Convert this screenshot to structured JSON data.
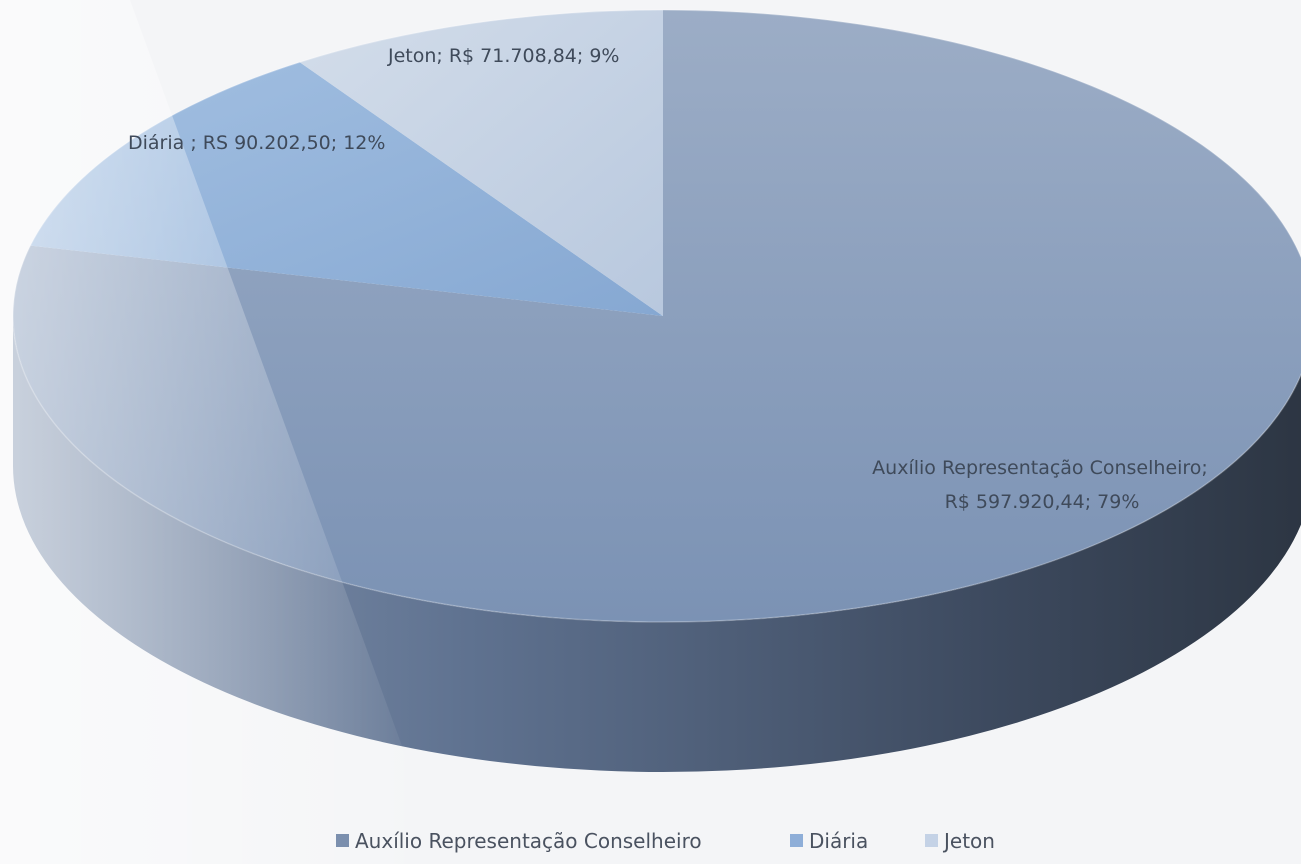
{
  "chart_data": {
    "type": "pie",
    "style": "3d",
    "title": "",
    "slices": [
      {
        "name": "Auxílio Representação Conselheiro",
        "value": 597920.44,
        "value_label": "R$ 597.920,44",
        "percent": 79,
        "color": "#8a9fbd"
      },
      {
        "name": "Diária",
        "value": 90202.5,
        "value_label": "RS 90.202,50",
        "percent": 12,
        "color": "#8faed6"
      },
      {
        "name": "Jeton",
        "value": 71708.84,
        "value_label": "R$ 71.708,84",
        "percent": 9,
        "color": "#c2cfe1"
      }
    ],
    "data_labels": [
      {
        "line1": "Auxílio Representação Conselheiro;",
        "line2": "R$ 597.920,44; 79%"
      },
      {
        "line1": "Diária ; RS 90.202,50; 12%",
        "line2": ""
      },
      {
        "line1": "Jeton; R$ 71.708,84; 9%",
        "line2": ""
      }
    ],
    "legend_position": "bottom",
    "legend": [
      {
        "label": "Auxílio Representação Conselheiro",
        "color": "#7b8fae"
      },
      {
        "label": "Diária",
        "color": "#8eaed8"
      },
      {
        "label": "Jeton",
        "color": "#c4d2e6"
      }
    ]
  }
}
